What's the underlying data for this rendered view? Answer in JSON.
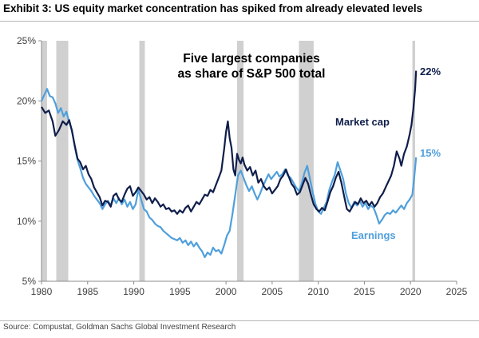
{
  "header": {
    "title": "Exhibit 3: US equity market concentration has spiked from already elevated levels"
  },
  "footer": {
    "source": "Source: Compustat, Goldman Sachs Global Investment Research"
  },
  "colors": {
    "market_cap": "#0f1d4a",
    "earnings": "#4f9fdc",
    "recession": "#d0d0d0",
    "axis": "#8c8c8c"
  },
  "chart_data": {
    "type": "line",
    "title": "Five largest companies as share of S&P 500 total",
    "title_lines": [
      "Five largest companies",
      "as share of S&P 500 total"
    ],
    "xlabel": "",
    "ylabel": "",
    "xlim": [
      1980,
      2025
    ],
    "ylim": [
      5,
      25
    ],
    "x_ticks": [
      1980,
      1985,
      1990,
      1995,
      2000,
      2005,
      2010,
      2015,
      2020,
      2025
    ],
    "x_tick_labels": [
      "1980",
      "1985",
      "1990",
      "1995",
      "2000",
      "2005",
      "2010",
      "2015",
      "2020",
      "2025"
    ],
    "y_ticks": [
      5,
      10,
      15,
      20,
      25
    ],
    "y_tick_labels": [
      "5%",
      "10%",
      "15%",
      "20%",
      "25%"
    ],
    "grid": false,
    "recession_bands": [
      [
        1980.0,
        1980.6
      ],
      [
        1981.6,
        1982.9
      ],
      [
        1990.6,
        1991.2
      ],
      [
        2001.2,
        2001.9
      ],
      [
        2007.9,
        2009.5
      ],
      [
        2020.2,
        2020.5
      ]
    ],
    "end_labels": {
      "market_cap": "22%",
      "earnings": "15%"
    },
    "series": [
      {
        "name": "Market cap",
        "points": [
          [
            1980.0,
            19.5
          ],
          [
            1980.4,
            19.0
          ],
          [
            1980.8,
            19.2
          ],
          [
            1981.2,
            18.3
          ],
          [
            1981.5,
            17.1
          ],
          [
            1981.9,
            17.6
          ],
          [
            1982.3,
            18.3
          ],
          [
            1982.7,
            18.0
          ],
          [
            1983.0,
            18.4
          ],
          [
            1983.3,
            17.5
          ],
          [
            1983.6,
            16.3
          ],
          [
            1983.9,
            15.2
          ],
          [
            1984.2,
            14.9
          ],
          [
            1984.5,
            14.3
          ],
          [
            1984.8,
            14.6
          ],
          [
            1985.1,
            13.9
          ],
          [
            1985.4,
            13.5
          ],
          [
            1985.7,
            12.8
          ],
          [
            1986.0,
            12.4
          ],
          [
            1986.3,
            12.0
          ],
          [
            1986.6,
            11.3
          ],
          [
            1986.9,
            11.7
          ],
          [
            1987.2,
            11.6
          ],
          [
            1987.5,
            11.2
          ],
          [
            1987.8,
            12.1
          ],
          [
            1988.1,
            12.3
          ],
          [
            1988.4,
            11.8
          ],
          [
            1988.7,
            11.6
          ],
          [
            1989.0,
            12.2
          ],
          [
            1989.3,
            12.7
          ],
          [
            1989.6,
            12.9
          ],
          [
            1989.9,
            12.1
          ],
          [
            1990.2,
            12.4
          ],
          [
            1990.5,
            12.8
          ],
          [
            1990.8,
            12.5
          ],
          [
            1991.1,
            12.2
          ],
          [
            1991.4,
            11.8
          ],
          [
            1991.7,
            12.0
          ],
          [
            1992.0,
            11.5
          ],
          [
            1992.3,
            11.9
          ],
          [
            1992.6,
            11.6
          ],
          [
            1992.9,
            11.2
          ],
          [
            1993.2,
            11.4
          ],
          [
            1993.5,
            11.0
          ],
          [
            1993.8,
            11.1
          ],
          [
            1994.1,
            10.8
          ],
          [
            1994.4,
            10.9
          ],
          [
            1994.7,
            10.6
          ],
          [
            1995.0,
            10.9
          ],
          [
            1995.3,
            10.7
          ],
          [
            1995.6,
            11.1
          ],
          [
            1995.9,
            11.3
          ],
          [
            1996.2,
            10.8
          ],
          [
            1996.5,
            11.2
          ],
          [
            1996.8,
            11.6
          ],
          [
            1997.1,
            11.4
          ],
          [
            1997.4,
            11.8
          ],
          [
            1997.7,
            12.2
          ],
          [
            1998.0,
            12.1
          ],
          [
            1998.3,
            12.6
          ],
          [
            1998.6,
            12.4
          ],
          [
            1998.9,
            13.0
          ],
          [
            1999.2,
            13.6
          ],
          [
            1999.5,
            14.2
          ],
          [
            1999.8,
            16.0
          ],
          [
            2000.0,
            17.4
          ],
          [
            2000.2,
            18.3
          ],
          [
            2000.4,
            16.9
          ],
          [
            2000.6,
            16.1
          ],
          [
            2000.8,
            14.3
          ],
          [
            2001.0,
            13.8
          ],
          [
            2001.2,
            15.6
          ],
          [
            2001.4,
            15.1
          ],
          [
            2001.6,
            14.8
          ],
          [
            2001.8,
            15.3
          ],
          [
            2002.0,
            14.7
          ],
          [
            2002.3,
            14.2
          ],
          [
            2002.6,
            14.5
          ],
          [
            2002.9,
            13.8
          ],
          [
            2003.2,
            14.2
          ],
          [
            2003.5,
            13.2
          ],
          [
            2003.8,
            13.5
          ],
          [
            2004.1,
            12.9
          ],
          [
            2004.4,
            12.6
          ],
          [
            2004.7,
            12.8
          ],
          [
            2005.0,
            12.3
          ],
          [
            2005.3,
            12.6
          ],
          [
            2005.6,
            12.9
          ],
          [
            2005.9,
            13.5
          ],
          [
            2006.2,
            13.8
          ],
          [
            2006.5,
            14.3
          ],
          [
            2006.8,
            13.7
          ],
          [
            2007.1,
            13.1
          ],
          [
            2007.4,
            12.8
          ],
          [
            2007.7,
            12.2
          ],
          [
            2008.0,
            12.4
          ],
          [
            2008.3,
            13.0
          ],
          [
            2008.6,
            13.6
          ],
          [
            2008.9,
            13.1
          ],
          [
            2009.2,
            12.2
          ],
          [
            2009.5,
            11.4
          ],
          [
            2009.8,
            11.0
          ],
          [
            2010.1,
            10.8
          ],
          [
            2010.4,
            11.1
          ],
          [
            2010.7,
            10.9
          ],
          [
            2011.0,
            11.6
          ],
          [
            2011.3,
            12.4
          ],
          [
            2011.6,
            12.9
          ],
          [
            2011.9,
            13.6
          ],
          [
            2012.2,
            14.1
          ],
          [
            2012.5,
            13.2
          ],
          [
            2012.8,
            12.1
          ],
          [
            2013.1,
            11.0
          ],
          [
            2013.4,
            10.8
          ],
          [
            2013.7,
            11.2
          ],
          [
            2014.0,
            11.6
          ],
          [
            2014.3,
            11.4
          ],
          [
            2014.6,
            11.9
          ],
          [
            2014.9,
            11.5
          ],
          [
            2015.2,
            11.7
          ],
          [
            2015.5,
            11.3
          ],
          [
            2015.8,
            11.6
          ],
          [
            2016.1,
            11.2
          ],
          [
            2016.4,
            11.5
          ],
          [
            2016.7,
            12.0
          ],
          [
            2017.0,
            12.3
          ],
          [
            2017.3,
            12.8
          ],
          [
            2017.6,
            13.3
          ],
          [
            2017.9,
            13.8
          ],
          [
            2018.2,
            14.6
          ],
          [
            2018.5,
            15.8
          ],
          [
            2018.8,
            15.2
          ],
          [
            2019.0,
            14.6
          ],
          [
            2019.3,
            15.6
          ],
          [
            2019.6,
            16.2
          ],
          [
            2019.9,
            17.2
          ],
          [
            2020.1,
            18.0
          ],
          [
            2020.3,
            19.3
          ],
          [
            2020.5,
            21.0
          ],
          [
            2020.6,
            22.5
          ]
        ]
      },
      {
        "name": "Earnings",
        "points": [
          [
            1980.0,
            20.0
          ],
          [
            1980.3,
            20.5
          ],
          [
            1980.6,
            21.0
          ],
          [
            1980.9,
            20.4
          ],
          [
            1981.2,
            20.3
          ],
          [
            1981.5,
            19.8
          ],
          [
            1981.8,
            19.0
          ],
          [
            1982.1,
            19.4
          ],
          [
            1982.4,
            18.7
          ],
          [
            1982.7,
            19.1
          ],
          [
            1983.0,
            18.2
          ],
          [
            1983.3,
            17.6
          ],
          [
            1983.6,
            16.2
          ],
          [
            1983.9,
            15.1
          ],
          [
            1984.2,
            14.4
          ],
          [
            1984.5,
            13.6
          ],
          [
            1984.8,
            13.1
          ],
          [
            1985.1,
            12.8
          ],
          [
            1985.4,
            12.5
          ],
          [
            1985.7,
            12.1
          ],
          [
            1986.0,
            11.8
          ],
          [
            1986.3,
            11.5
          ],
          [
            1986.6,
            11.0
          ],
          [
            1986.9,
            11.4
          ],
          [
            1987.2,
            11.7
          ],
          [
            1987.5,
            11.3
          ],
          [
            1987.8,
            11.9
          ],
          [
            1988.1,
            11.5
          ],
          [
            1988.4,
            11.9
          ],
          [
            1988.7,
            11.4
          ],
          [
            1989.0,
            11.8
          ],
          [
            1989.3,
            11.2
          ],
          [
            1989.6,
            11.6
          ],
          [
            1989.9,
            11.0
          ],
          [
            1990.2,
            11.4
          ],
          [
            1990.5,
            12.6
          ],
          [
            1990.8,
            11.8
          ],
          [
            1991.1,
            11.0
          ],
          [
            1991.4,
            10.8
          ],
          [
            1991.7,
            10.3
          ],
          [
            1992.0,
            10.1
          ],
          [
            1992.3,
            9.8
          ],
          [
            1992.6,
            9.6
          ],
          [
            1992.9,
            9.5
          ],
          [
            1993.2,
            9.2
          ],
          [
            1993.5,
            9.0
          ],
          [
            1993.8,
            8.8
          ],
          [
            1994.1,
            8.6
          ],
          [
            1994.4,
            8.5
          ],
          [
            1994.7,
            8.4
          ],
          [
            1995.0,
            8.6
          ],
          [
            1995.3,
            8.2
          ],
          [
            1995.6,
            8.4
          ],
          [
            1995.9,
            8.0
          ],
          [
            1996.2,
            8.3
          ],
          [
            1996.5,
            7.9
          ],
          [
            1996.8,
            8.2
          ],
          [
            1997.1,
            7.8
          ],
          [
            1997.4,
            7.5
          ],
          [
            1997.7,
            7.0
          ],
          [
            1998.0,
            7.4
          ],
          [
            1998.3,
            7.2
          ],
          [
            1998.6,
            7.8
          ],
          [
            1998.9,
            7.5
          ],
          [
            1999.2,
            7.6
          ],
          [
            1999.5,
            7.3
          ],
          [
            1999.8,
            8.0
          ],
          [
            2000.1,
            8.8
          ],
          [
            2000.4,
            9.2
          ],
          [
            2000.7,
            10.6
          ],
          [
            2001.0,
            12.2
          ],
          [
            2001.3,
            13.8
          ],
          [
            2001.6,
            14.2
          ],
          [
            2001.9,
            13.6
          ],
          [
            2002.2,
            13.0
          ],
          [
            2002.5,
            12.5
          ],
          [
            2002.8,
            12.9
          ],
          [
            2003.1,
            12.3
          ],
          [
            2003.4,
            11.8
          ],
          [
            2003.7,
            12.3
          ],
          [
            2004.0,
            12.9
          ],
          [
            2004.3,
            13.4
          ],
          [
            2004.6,
            13.9
          ],
          [
            2004.9,
            13.5
          ],
          [
            2005.2,
            13.8
          ],
          [
            2005.5,
            14.1
          ],
          [
            2005.8,
            13.7
          ],
          [
            2006.1,
            13.9
          ],
          [
            2006.4,
            14.3
          ],
          [
            2006.7,
            13.8
          ],
          [
            2007.0,
            13.6
          ],
          [
            2007.3,
            13.2
          ],
          [
            2007.6,
            12.8
          ],
          [
            2007.9,
            12.5
          ],
          [
            2008.2,
            13.1
          ],
          [
            2008.5,
            14.0
          ],
          [
            2008.8,
            14.6
          ],
          [
            2009.1,
            13.5
          ],
          [
            2009.4,
            12.4
          ],
          [
            2009.7,
            11.4
          ],
          [
            2010.0,
            10.8
          ],
          [
            2010.3,
            10.6
          ],
          [
            2010.6,
            11.1
          ],
          [
            2010.9,
            11.6
          ],
          [
            2011.2,
            12.6
          ],
          [
            2011.5,
            13.3
          ],
          [
            2011.8,
            13.9
          ],
          [
            2012.1,
            14.9
          ],
          [
            2012.4,
            14.2
          ],
          [
            2012.7,
            13.5
          ],
          [
            2013.0,
            12.3
          ],
          [
            2013.3,
            11.5
          ],
          [
            2013.6,
            11.1
          ],
          [
            2013.9,
            11.6
          ],
          [
            2014.2,
            11.3
          ],
          [
            2014.5,
            11.7
          ],
          [
            2014.8,
            11.2
          ],
          [
            2015.1,
            11.5
          ],
          [
            2015.4,
            11.0
          ],
          [
            2015.7,
            11.3
          ],
          [
            2016.0,
            11.1
          ],
          [
            2016.3,
            10.5
          ],
          [
            2016.6,
            9.8
          ],
          [
            2016.9,
            10.1
          ],
          [
            2017.2,
            10.5
          ],
          [
            2017.5,
            10.7
          ],
          [
            2017.8,
            10.6
          ],
          [
            2018.1,
            10.9
          ],
          [
            2018.4,
            10.7
          ],
          [
            2018.7,
            11.0
          ],
          [
            2019.0,
            11.3
          ],
          [
            2019.3,
            11.0
          ],
          [
            2019.6,
            11.5
          ],
          [
            2019.9,
            11.8
          ],
          [
            2020.2,
            12.2
          ],
          [
            2020.4,
            13.6
          ],
          [
            2020.6,
            15.3
          ]
        ]
      }
    ]
  }
}
